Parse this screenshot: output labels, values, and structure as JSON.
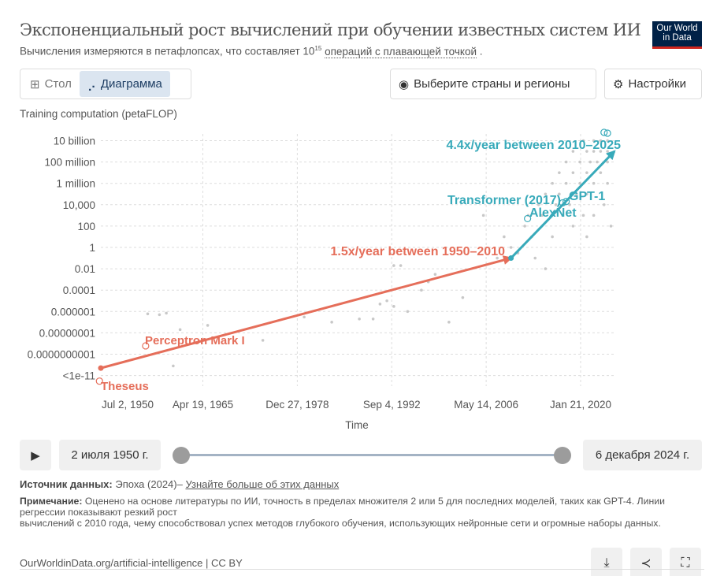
{
  "header": {
    "title": "Экспоненциальный рост вычислений при обучении известных систем ИИ",
    "subtitle_pre": "Вычисления измеряются в петафлопсах, что составляет 10",
    "subtitle_sup": "15",
    "subtitle_link": "операций с плавающей точкой",
    "subtitle_post": " .",
    "logo_line1": "Our World",
    "logo_line2": "in Data"
  },
  "tabs": [
    {
      "label": "Стол",
      "icon": "table-icon"
    },
    {
      "label": "Диаграмма",
      "icon": "scatter-chart-icon",
      "active": true
    }
  ],
  "toolbar": {
    "countries_label": "Выберите страны и регионы",
    "settings_label": "Настройки"
  },
  "colors": {
    "early": "#e56e5a",
    "recent": "#38aaba",
    "points": "#c8c8c8"
  },
  "chart_data": {
    "type": "scatter",
    "y_scale": "log",
    "ylabel": "Training computation (petaFLOP)",
    "xlabel": "Time",
    "xlim": [
      1950.5,
      2025
    ],
    "ylim": [
      1e-12,
      10000000000.0
    ],
    "grid": true,
    "x_ticks": [
      {
        "x": 1950.5,
        "label": "Jul 2, 1950"
      },
      {
        "x": 1965.3,
        "label": "Apr 19, 1965"
      },
      {
        "x": 1979,
        "label": "Dec 27, 1978"
      },
      {
        "x": 1992.7,
        "label": "Sep 4, 1992"
      },
      {
        "x": 2006.4,
        "label": "May 14, 2006"
      },
      {
        "x": 2020.1,
        "label": "Jan 21, 2020"
      }
    ],
    "y_ticks": [
      {
        "v": 10000000000.0,
        "label": "10 billion"
      },
      {
        "v": 100000000.0,
        "label": "100 million"
      },
      {
        "v": 1000000.0,
        "label": "1 million"
      },
      {
        "v": 10000.0,
        "label": "10,000"
      },
      {
        "v": 100,
        "label": "100"
      },
      {
        "v": 1,
        "label": "1"
      },
      {
        "v": 0.01,
        "label": "0.01"
      },
      {
        "v": 0.0001,
        "label": "0.0001"
      },
      {
        "v": 1e-06,
        "label": "0.000001"
      },
      {
        "v": 1e-08,
        "label": "0.00000001"
      },
      {
        "v": 1e-10,
        "label": "0.0000000001"
      },
      {
        "v": 1e-12,
        "label": "<1e-11"
      }
    ],
    "points": [
      [
        1957.3,
        6e-07
      ],
      [
        1959,
        5e-07
      ],
      [
        1960,
        7e-07
      ],
      [
        1961,
        8e-12
      ],
      [
        1962,
        2e-08
      ],
      [
        1966,
        5e-08
      ],
      [
        1974,
        2e-09
      ],
      [
        1980,
        3e-07
      ],
      [
        1984,
        1e-07
      ],
      [
        1988,
        2e-07
      ],
      [
        1990,
        2e-07
      ],
      [
        1991,
        5e-06
      ],
      [
        1992,
        1e-05
      ],
      [
        1993,
        3e-06
      ],
      [
        1995,
        1e-06
      ],
      [
        1993,
        0.02
      ],
      [
        1994,
        0.02
      ],
      [
        1997,
        0.0001
      ],
      [
        1998,
        0.0006
      ],
      [
        1999,
        0.003
      ],
      [
        2001,
        1e-07
      ],
      [
        2003,
        2e-05
      ],
      [
        2006,
        1000
      ],
      [
        2008,
        0.1
      ],
      [
        2009,
        10
      ],
      [
        2010,
        1
      ],
      [
        2011,
        0.3
      ],
      [
        2012,
        100
      ],
      [
        2012.5,
        1000
      ],
      [
        2013,
        10
      ],
      [
        2013.5,
        0.1
      ],
      [
        2014,
        10000
      ],
      [
        2014.5,
        1000
      ],
      [
        2015,
        100000.0
      ],
      [
        2015,
        0.01
      ],
      [
        2016,
        1000000.0
      ],
      [
        2016,
        10
      ],
      [
        2016.5,
        10000.0
      ],
      [
        2017,
        100000.0
      ],
      [
        2017,
        10000000.0
      ],
      [
        2017.5,
        1000
      ],
      [
        2018,
        1000000.0
      ],
      [
        2018,
        100000000.0
      ],
      [
        2018.5,
        10000.0
      ],
      [
        2019,
        10000000.0
      ],
      [
        2019,
        1000000000.0
      ],
      [
        2019,
        100
      ],
      [
        2019.5,
        100000.0
      ],
      [
        2020,
        100000000.0
      ],
      [
        2020,
        1000000.0
      ],
      [
        2020.5,
        10000000000.0
      ],
      [
        2020.5,
        1000
      ],
      [
        2021,
        1000000000.0
      ],
      [
        2021,
        10000000.0
      ],
      [
        2021,
        100000.0
      ],
      [
        2021.5,
        100000000.0
      ],
      [
        2022,
        1000000000.0
      ],
      [
        2022,
        10000000000.0
      ],
      [
        2022,
        1000000.0
      ],
      [
        2022.5,
        100000000.0
      ],
      [
        2023,
        1000000000.0
      ],
      [
        2023,
        10000000000.0
      ],
      [
        2023,
        10000000.0
      ],
      [
        2023.5,
        10000.0
      ],
      [
        2024,
        1000000000.0
      ],
      [
        2024,
        10000000000.0
      ],
      [
        2024,
        100000000.0
      ],
      [
        2024.5,
        100
      ],
      [
        2024,
        1000000.0
      ],
      [
        2021,
        10
      ],
      [
        2022,
        1000
      ]
    ],
    "trends": [
      {
        "label": "1.5x/year between 1950–2010",
        "from": [
          1950.5,
          5e-12
        ],
        "to": [
          2010,
          0.1
        ],
        "color": "#e56e5a"
      },
      {
        "label": "4.4x/year between 2010–2025",
        "from": [
          2010,
          0.1
        ],
        "to": [
          2025,
          1000000000.0
        ],
        "color": "#38aaba"
      }
    ],
    "annotations": [
      {
        "label": "Theseus",
        "x": 1950.3,
        "v": 3e-13,
        "color": "#e56e5a"
      },
      {
        "label": "Perceptron Mark I",
        "x": 1957,
        "v": 6e-10,
        "color": "#e56e5a"
      },
      {
        "label": "AlexNet",
        "x": 2012.4,
        "v": 500,
        "color": "#38aaba"
      },
      {
        "label": "Transformer (2017)",
        "x": 2017.5,
        "v": 15000.0,
        "color": "#38aaba"
      },
      {
        "label": "GPT-1",
        "x": 2018,
        "v": 20000.0,
        "color": "#38aaba"
      }
    ],
    "highlight_points": [
      [
        2023.5,
        60000000000.0
      ],
      [
        2024,
        50000000000.0
      ]
    ]
  },
  "timeline": {
    "start_label": "2 июля 1950 г.",
    "end_label": "6 декабря 2024 г.",
    "start": 0,
    "end": 1
  },
  "footer": {
    "source_label": "Источник данных:",
    "source_text": " Эпоха (2024)– ",
    "source_link": "Узнайте больше об этих данных",
    "note_label": "Примечание:",
    "note_text": " Оценено на основе литературы по ИИ, точность в пределах множителя 2 или 5 для последних моделей, таких как GPT-4. Линии регрессии показывают резкий рост",
    "note_text2": "вычислений с 2010 года, чему способствовал успех методов глубокого обучения, использующих нейронные сети и огромные наборы данных.",
    "license": "OurWorldinData.org/artificial-intelligence | CC BY"
  }
}
